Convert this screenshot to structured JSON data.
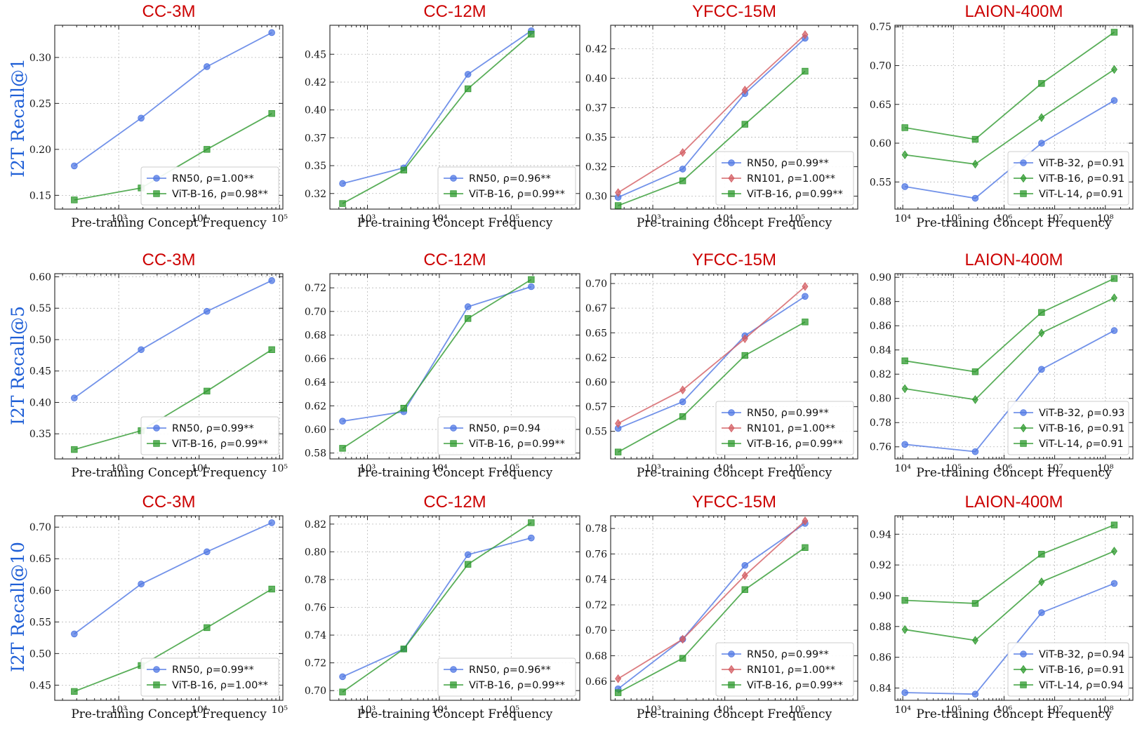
{
  "colors": {
    "RN50": "#4f77e3",
    "RN101": "#d35c62",
    "ViT-B-16": "#2f9a2f",
    "ViT-B-32": "#4f77e3",
    "ViT-L-14": "#2f9a2f"
  },
  "row_labels": [
    "I2T Recall@1",
    "I2T Recall@5",
    "I2T Recall@10"
  ],
  "chart_data": [
    {
      "type": "line",
      "row": 0,
      "col": 0,
      "title": "CC-3M",
      "xlabel": "Pre-training Concept Frequency",
      "ylabel": "I2T Recall@1",
      "xscale": "log",
      "xlim": [
        160,
        110000
      ],
      "ylim": [
        0.135,
        0.335
      ],
      "yticks": [
        0.15,
        0.2,
        0.25,
        0.3
      ],
      "ytick_labels": [
        "0.15",
        "0.20",
        "0.25",
        "0.30"
      ],
      "xticks": [
        1000,
        10000,
        100000
      ],
      "xtick_labels": [
        "10³",
        "10⁴",
        "10⁵"
      ],
      "x": [
        280,
        1900,
        12500,
        80000
      ],
      "series": [
        {
          "name": "RN50",
          "marker": "circle",
          "legend": "RN50, ρ=1.00**",
          "values": [
            0.182,
            0.234,
            0.29,
            0.327
          ]
        },
        {
          "name": "ViT-B-16",
          "marker": "square",
          "legend": "ViT-B-16, ρ=0.98**",
          "values": [
            0.145,
            0.158,
            0.2,
            0.239
          ]
        }
      ]
    },
    {
      "type": "line",
      "row": 0,
      "col": 1,
      "title": "CC-12M",
      "xlabel": "Pre-training Concept Frequency",
      "ylabel": "",
      "xscale": "log",
      "xlim": [
        300,
        900000
      ],
      "ylim": [
        0.306,
        0.471
      ],
      "yticks": [
        0.32,
        0.345,
        0.37,
        0.395,
        0.42,
        0.445
      ],
      "ytick_labels": [
        "0.32",
        "0.35",
        "0.37",
        "0.40",
        "0.42",
        "0.45"
      ],
      "xticks": [
        1000,
        10000,
        100000
      ],
      "xtick_labels": [
        "10³",
        "10⁴",
        "10⁵"
      ],
      "x": [
        450,
        3200,
        25000,
        190000
      ],
      "series": [
        {
          "name": "RN50",
          "marker": "circle",
          "legend": "RN50, ρ=0.96**",
          "values": [
            0.329,
            0.343,
            0.427,
            0.466
          ]
        },
        {
          "name": "ViT-B-16",
          "marker": "square",
          "legend": "ViT-B-16, ρ=0.99**",
          "values": [
            0.311,
            0.341,
            0.414,
            0.463
          ]
        }
      ]
    },
    {
      "type": "line",
      "row": 0,
      "col": 2,
      "title": "YFCC-15M",
      "xlabel": "Pre-training Concept Frequency",
      "ylabel": "",
      "xscale": "log",
      "xlim": [
        260,
        700000
      ],
      "ylim": [
        0.284,
        0.44
      ],
      "yticks": [
        0.295,
        0.32,
        0.345,
        0.37,
        0.395,
        0.42
      ],
      "ytick_labels": [
        "0.30",
        "0.32",
        "0.35",
        "0.37",
        "0.40",
        "0.42"
      ],
      "xticks": [
        1000,
        10000,
        100000
      ],
      "xtick_labels": [
        "10³",
        "10⁴",
        "10⁵"
      ],
      "x": [
        330,
        2600,
        19000,
        130000
      ],
      "series": [
        {
          "name": "RN50",
          "marker": "circle",
          "legend": "RN50, ρ=0.99**",
          "values": [
            0.294,
            0.318,
            0.382,
            0.429
          ]
        },
        {
          "name": "RN101",
          "marker": "diamond",
          "legend": "RN101, ρ=1.00**",
          "values": [
            0.298,
            0.332,
            0.385,
            0.432
          ]
        },
        {
          "name": "ViT-B-16",
          "marker": "square",
          "legend": "ViT-B-16, ρ=0.99**",
          "values": [
            0.287,
            0.308,
            0.356,
            0.401
          ]
        }
      ]
    },
    {
      "type": "line",
      "row": 0,
      "col": 3,
      "title": "LAION-400M",
      "xlabel": "Pre-training Concept Frequency",
      "ylabel": "",
      "xscale": "log",
      "xlim": [
        7000,
        350000000
      ],
      "ylim": [
        0.515,
        0.752
      ],
      "yticks": [
        0.55,
        0.6,
        0.65,
        0.7,
        0.75
      ],
      "ytick_labels": [
        "0.55",
        "0.60",
        "0.65",
        "0.70",
        "0.75"
      ],
      "xticks": [
        10000,
        100000,
        1000000,
        10000000,
        100000000
      ],
      "xtick_labels": [
        "10⁴",
        "10⁵",
        "10⁶",
        "10⁷",
        "10⁸"
      ],
      "x": [
        11000,
        270000,
        5500000,
        150000000
      ],
      "series": [
        {
          "name": "ViT-B-32",
          "marker": "circle",
          "legend": "ViT-B-32, ρ=0.91",
          "values": [
            0.544,
            0.529,
            0.6,
            0.655
          ]
        },
        {
          "name": "ViT-B-16",
          "marker": "diamond",
          "legend": "ViT-B-16, ρ=0.91",
          "values": [
            0.585,
            0.573,
            0.633,
            0.695
          ]
        },
        {
          "name": "ViT-L-14",
          "marker": "square",
          "legend": "ViT-L-14, ρ=0.91",
          "values": [
            0.62,
            0.605,
            0.677,
            0.743
          ]
        }
      ]
    },
    {
      "type": "line",
      "row": 1,
      "col": 0,
      "title": "CC-3M",
      "xlabel": "Pre-training Concept Frequency",
      "ylabel": "I2T Recall@5",
      "xscale": "log",
      "xlim": [
        160,
        110000
      ],
      "ylim": [
        0.31,
        0.605
      ],
      "yticks": [
        0.35,
        0.4,
        0.45,
        0.5,
        0.55,
        0.6
      ],
      "ytick_labels": [
        "0.35",
        "0.40",
        "0.45",
        "0.50",
        "0.55",
        "0.60"
      ],
      "xticks": [
        1000,
        10000,
        100000
      ],
      "xtick_labels": [
        "10³",
        "10⁴",
        "10⁵"
      ],
      "x": [
        280,
        1900,
        12500,
        80000
      ],
      "series": [
        {
          "name": "RN50",
          "marker": "circle",
          "legend": "RN50, ρ=0.99**",
          "values": [
            0.407,
            0.484,
            0.545,
            0.594
          ]
        },
        {
          "name": "ViT-B-16",
          "marker": "square",
          "legend": "ViT-B-16, ρ=0.99**",
          "values": [
            0.325,
            0.355,
            0.418,
            0.484
          ]
        }
      ]
    },
    {
      "type": "line",
      "row": 1,
      "col": 1,
      "title": "CC-12M",
      "xlabel": "Pre-training Concept Frequency",
      "ylabel": "",
      "xscale": "log",
      "xlim": [
        300,
        900000
      ],
      "ylim": [
        0.575,
        0.732
      ],
      "yticks": [
        0.58,
        0.6,
        0.62,
        0.64,
        0.66,
        0.68,
        0.7,
        0.72
      ],
      "ytick_labels": [
        "0.58",
        "0.60",
        "0.62",
        "0.64",
        "0.66",
        "0.68",
        "0.70",
        "0.72"
      ],
      "xticks": [
        1000,
        10000,
        100000
      ],
      "xtick_labels": [
        "10³",
        "10⁴",
        "10⁵"
      ],
      "x": [
        450,
        3200,
        25000,
        190000
      ],
      "series": [
        {
          "name": "RN50",
          "marker": "circle",
          "legend": "RN50, ρ=0.94",
          "values": [
            0.607,
            0.615,
            0.704,
            0.721
          ]
        },
        {
          "name": "ViT-B-16",
          "marker": "square",
          "legend": "ViT-B-16, ρ=0.99**",
          "values": [
            0.584,
            0.618,
            0.694,
            0.727
          ]
        }
      ]
    },
    {
      "type": "line",
      "row": 1,
      "col": 2,
      "title": "YFCC-15M",
      "xlabel": "Pre-training Concept Frequency",
      "ylabel": "",
      "xscale": "log",
      "xlim": [
        260,
        700000
      ],
      "ylim": [
        0.517,
        0.705
      ],
      "yticks": [
        0.545,
        0.57,
        0.595,
        0.62,
        0.645,
        0.67,
        0.695
      ],
      "ytick_labels": [
        "0.55",
        "0.57",
        "0.60",
        "0.62",
        "0.65",
        "0.67",
        "0.70"
      ],
      "xticks": [
        1000,
        10000,
        100000
      ],
      "xtick_labels": [
        "10³",
        "10⁴",
        "10⁵"
      ],
      "x": [
        330,
        2600,
        19000,
        130000
      ],
      "series": [
        {
          "name": "RN50",
          "marker": "circle",
          "legend": "RN50, ρ=0.99**",
          "values": [
            0.548,
            0.575,
            0.642,
            0.682
          ]
        },
        {
          "name": "RN101",
          "marker": "diamond",
          "legend": "RN101, ρ=1.00**",
          "values": [
            0.553,
            0.587,
            0.639,
            0.692
          ]
        },
        {
          "name": "ViT-B-16",
          "marker": "square",
          "legend": "ViT-B-16, ρ=0.99**",
          "values": [
            0.524,
            0.56,
            0.622,
            0.656
          ]
        }
      ]
    },
    {
      "type": "line",
      "row": 1,
      "col": 3,
      "title": "LAION-400M",
      "xlabel": "Pre-training Concept Frequency",
      "ylabel": "",
      "xscale": "log",
      "xlim": [
        7000,
        350000000
      ],
      "ylim": [
        0.75,
        0.903
      ],
      "yticks": [
        0.76,
        0.78,
        0.8,
        0.82,
        0.84,
        0.86,
        0.88,
        0.9
      ],
      "ytick_labels": [
        "0.76",
        "0.78",
        "0.80",
        "0.82",
        "0.84",
        "0.86",
        "0.88",
        "0.90"
      ],
      "xticks": [
        10000,
        100000,
        1000000,
        10000000,
        100000000
      ],
      "xtick_labels": [
        "10⁴",
        "10⁵",
        "10⁶",
        "10⁷",
        "10⁸"
      ],
      "x": [
        11000,
        270000,
        5500000,
        150000000
      ],
      "series": [
        {
          "name": "ViT-B-32",
          "marker": "circle",
          "legend": "ViT-B-32, ρ=0.93",
          "values": [
            0.762,
            0.756,
            0.824,
            0.856
          ]
        },
        {
          "name": "ViT-B-16",
          "marker": "diamond",
          "legend": "ViT-B-16, ρ=0.91",
          "values": [
            0.808,
            0.799,
            0.854,
            0.883
          ]
        },
        {
          "name": "ViT-L-14",
          "marker": "square",
          "legend": "ViT-L-14, ρ=0.91",
          "values": [
            0.831,
            0.822,
            0.871,
            0.899
          ]
        }
      ]
    },
    {
      "type": "line",
      "row": 2,
      "col": 0,
      "title": "CC-3M",
      "xlabel": "Pre-training Concept Frequency",
      "ylabel": "I2T Recall@10",
      "xscale": "log",
      "xlim": [
        160,
        110000
      ],
      "ylim": [
        0.426,
        0.718
      ],
      "yticks": [
        0.45,
        0.5,
        0.55,
        0.6,
        0.65,
        0.7
      ],
      "ytick_labels": [
        "0.45",
        "0.50",
        "0.55",
        "0.60",
        "0.65",
        "0.70"
      ],
      "xticks": [
        1000,
        10000,
        100000
      ],
      "xtick_labels": [
        "10³",
        "10⁴",
        "10⁵"
      ],
      "x": [
        280,
        1900,
        12500,
        80000
      ],
      "series": [
        {
          "name": "RN50",
          "marker": "circle",
          "legend": "RN50, ρ=0.99**",
          "values": [
            0.531,
            0.61,
            0.661,
            0.707
          ]
        },
        {
          "name": "ViT-B-16",
          "marker": "square",
          "legend": "ViT-B-16, ρ=1.00**",
          "values": [
            0.44,
            0.481,
            0.541,
            0.602
          ]
        }
      ]
    },
    {
      "type": "line",
      "row": 2,
      "col": 1,
      "title": "CC-12M",
      "xlabel": "Pre-training Concept Frequency",
      "ylabel": "",
      "xscale": "log",
      "xlim": [
        300,
        900000
      ],
      "ylim": [
        0.693,
        0.826
      ],
      "yticks": [
        0.7,
        0.72,
        0.74,
        0.76,
        0.78,
        0.8,
        0.82
      ],
      "ytick_labels": [
        "0.70",
        "0.72",
        "0.74",
        "0.76",
        "0.78",
        "0.80",
        "0.82"
      ],
      "xticks": [
        1000,
        10000,
        100000
      ],
      "xtick_labels": [
        "10³",
        "10⁴",
        "10⁵"
      ],
      "x": [
        450,
        3200,
        25000,
        190000
      ],
      "series": [
        {
          "name": "RN50",
          "marker": "circle",
          "legend": "RN50, ρ=0.96**",
          "values": [
            0.71,
            0.73,
            0.798,
            0.81
          ]
        },
        {
          "name": "ViT-B-16",
          "marker": "square",
          "legend": "ViT-B-16, ρ=0.99**",
          "values": [
            0.699,
            0.73,
            0.791,
            0.821
          ]
        }
      ]
    },
    {
      "type": "line",
      "row": 2,
      "col": 2,
      "title": "YFCC-15M",
      "xlabel": "Pre-training Concept Frequency",
      "ylabel": "",
      "xscale": "log",
      "xlim": [
        260,
        700000
      ],
      "ylim": [
        0.645,
        0.79
      ],
      "yticks": [
        0.66,
        0.68,
        0.7,
        0.72,
        0.74,
        0.76,
        0.78
      ],
      "ytick_labels": [
        "0.66",
        "0.68",
        "0.70",
        "0.72",
        "0.74",
        "0.76",
        "0.78"
      ],
      "xticks": [
        1000,
        10000,
        100000
      ],
      "xtick_labels": [
        "10³",
        "10⁴",
        "10⁵"
      ],
      "x": [
        330,
        2600,
        19000,
        130000
      ],
      "series": [
        {
          "name": "RN50",
          "marker": "circle",
          "legend": "RN50, ρ=0.99**",
          "values": [
            0.654,
            0.693,
            0.751,
            0.784
          ]
        },
        {
          "name": "RN101",
          "marker": "diamond",
          "legend": "RN101, ρ=1.00**",
          "values": [
            0.662,
            0.693,
            0.743,
            0.786
          ]
        },
        {
          "name": "ViT-B-16",
          "marker": "square",
          "legend": "ViT-B-16, ρ=0.99**",
          "values": [
            0.651,
            0.678,
            0.732,
            0.765
          ]
        }
      ]
    },
    {
      "type": "line",
      "row": 2,
      "col": 3,
      "title": "LAION-400M",
      "xlabel": "Pre-training Concept Frequency",
      "ylabel": "",
      "xscale": "log",
      "xlim": [
        7000,
        350000000
      ],
      "ylim": [
        0.832,
        0.952
      ],
      "yticks": [
        0.84,
        0.86,
        0.88,
        0.9,
        0.92,
        0.94
      ],
      "ytick_labels": [
        "0.84",
        "0.86",
        "0.88",
        "0.90",
        "0.92",
        "0.94"
      ],
      "xticks": [
        10000,
        100000,
        1000000,
        10000000,
        100000000
      ],
      "xtick_labels": [
        "10⁴",
        "10⁵",
        "10⁶",
        "10⁷",
        "10⁸"
      ],
      "x": [
        11000,
        270000,
        5500000,
        150000000
      ],
      "series": [
        {
          "name": "ViT-B-32",
          "marker": "circle",
          "legend": "ViT-B-32, ρ=0.94",
          "values": [
            0.837,
            0.836,
            0.889,
            0.908
          ]
        },
        {
          "name": "ViT-B-16",
          "marker": "diamond",
          "legend": "ViT-B-16, ρ=0.91",
          "values": [
            0.878,
            0.871,
            0.909,
            0.929
          ]
        },
        {
          "name": "ViT-L-14",
          "marker": "square",
          "legend": "ViT-L-14, ρ=0.94",
          "values": [
            0.897,
            0.895,
            0.927,
            0.946
          ]
        }
      ]
    }
  ]
}
